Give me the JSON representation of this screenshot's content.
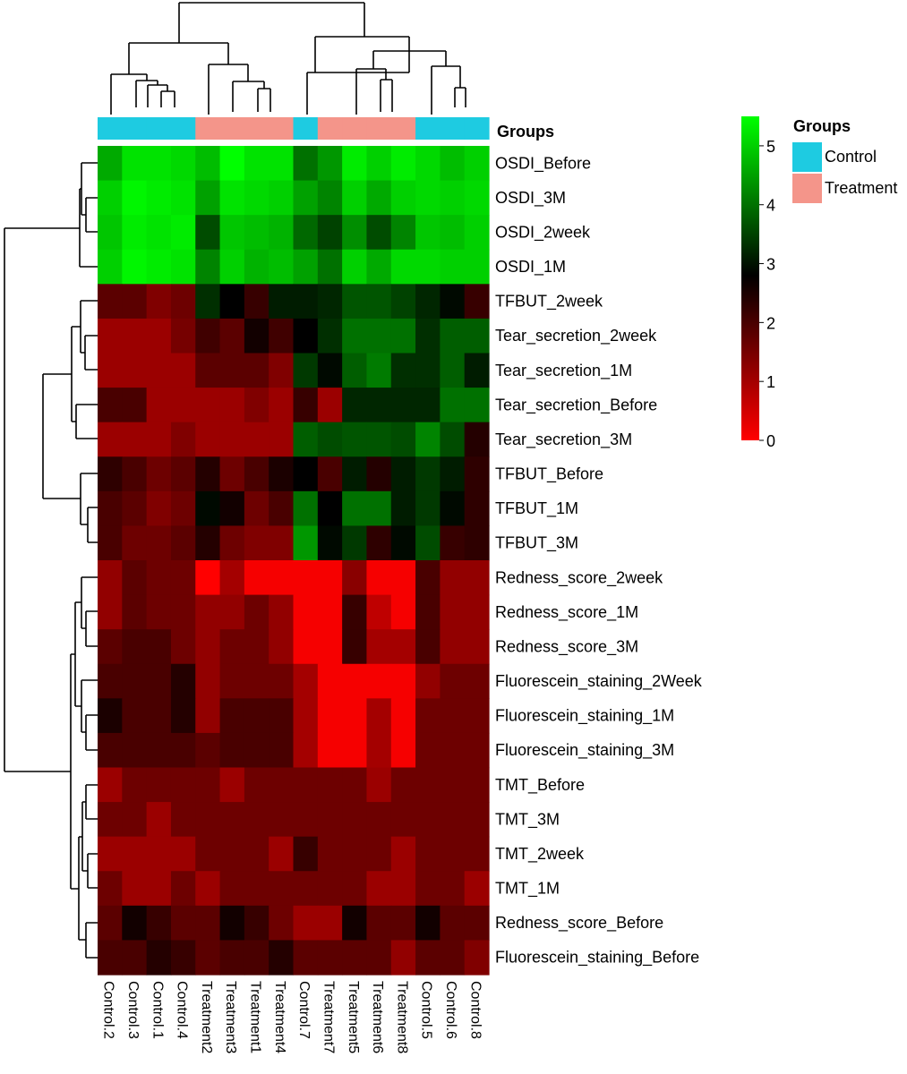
{
  "chart_data": {
    "type": "heatmap",
    "columns": [
      "Control.2",
      "Control.3",
      "Control.1",
      "Control.4",
      "Treatment2",
      "Treatment3",
      "Treatment1",
      "Treatment4",
      "Control.7",
      "Treatment7",
      "Treatment5",
      "Treatment6",
      "Treatment8",
      "Control.5",
      "Control.6",
      "Control.8"
    ],
    "column_groups": [
      "Control",
      "Control",
      "Control",
      "Control",
      "Treatment",
      "Treatment",
      "Treatment",
      "Treatment",
      "Control",
      "Treatment",
      "Treatment",
      "Treatment",
      "Treatment",
      "Control",
      "Control",
      "Control"
    ],
    "rows": [
      "OSDI_Before",
      "OSDI_3M",
      "OSDI_2week",
      "OSDI_1M",
      "TFBUT_2week",
      "Tear_secretion_2week",
      "Tear_secretion_1M",
      "Tear_secretion_Before",
      "Tear_secretion_3M",
      "TFBUT_Before",
      "TFBUT_1M",
      "TFBUT_3M",
      "Redness_score_2week",
      "Redness_score_1M",
      "Redness_score_3M",
      "Fluorescein_staining_2Week",
      "Fluorescein_staining_1M",
      "Fluorescein_staining_3M",
      "TMT_Before",
      "TMT_3M",
      "TMT_2week",
      "TMT_1M",
      "Redness_score_Before",
      "Fluorescein_staining_Before"
    ],
    "values": [
      [
        4.6,
        5.2,
        5.2,
        5.1,
        4.8,
        5.5,
        5.2,
        5.2,
        4.0,
        4.4,
        5.3,
        5.0,
        5.3,
        5.1,
        4.8,
        5.0
      ],
      [
        5.0,
        5.4,
        5.3,
        5.2,
        4.5,
        5.2,
        5.1,
        5.0,
        4.5,
        4.2,
        5.0,
        4.6,
        5.0,
        5.1,
        5.0,
        5.1
      ],
      [
        4.9,
        5.3,
        5.2,
        5.3,
        3.6,
        4.9,
        4.8,
        4.7,
        3.9,
        3.5,
        4.3,
        3.6,
        4.2,
        4.9,
        4.8,
        5.0
      ],
      [
        5.0,
        5.4,
        5.3,
        5.2,
        4.2,
        5.0,
        4.7,
        4.8,
        4.5,
        4.0,
        5.0,
        4.6,
        5.1,
        5.1,
        5.0,
        5.0
      ],
      [
        1.8,
        1.8,
        1.4,
        1.6,
        3.3,
        2.8,
        2.2,
        3.1,
        3.1,
        3.2,
        3.7,
        3.7,
        3.5,
        3.2,
        2.9,
        2.2
      ],
      [
        1.1,
        1.1,
        1.1,
        1.5,
        2.1,
        1.8,
        2.6,
        2.1,
        2.8,
        3.3,
        4.0,
        4.0,
        4.0,
        3.3,
        3.8,
        3.8
      ],
      [
        1.1,
        1.1,
        1.1,
        1.1,
        1.8,
        1.8,
        1.8,
        1.4,
        3.4,
        2.9,
        3.8,
        4.1,
        3.3,
        3.3,
        3.8,
        3.1
      ],
      [
        2.0,
        2.0,
        1.1,
        1.1,
        1.1,
        1.1,
        1.4,
        1.1,
        2.2,
        1.1,
        3.2,
        3.2,
        3.2,
        3.2,
        4.0,
        4.0
      ],
      [
        1.1,
        1.1,
        1.1,
        1.4,
        1.1,
        1.1,
        1.1,
        1.1,
        3.8,
        3.6,
        3.7,
        3.7,
        3.6,
        4.2,
        3.6,
        2.4
      ],
      [
        2.3,
        2.0,
        1.6,
        1.8,
        2.4,
        1.6,
        2.0,
        2.5,
        2.8,
        2.0,
        3.1,
        2.4,
        3.1,
        3.4,
        3.1,
        2.3
      ],
      [
        2.0,
        1.8,
        1.4,
        1.6,
        2.9,
        2.6,
        1.6,
        2.0,
        4.0,
        2.8,
        4.0,
        4.0,
        3.1,
        3.4,
        2.9,
        2.3
      ],
      [
        2.0,
        1.6,
        1.6,
        1.8,
        2.4,
        1.6,
        1.4,
        1.4,
        4.4,
        2.9,
        3.4,
        2.3,
        2.9,
        3.6,
        2.2,
        2.3
      ],
      [
        1.2,
        1.8,
        1.6,
        1.6,
        0.0,
        1.0,
        0.1,
        0.1,
        0.1,
        0.1,
        1.3,
        0.1,
        0.1,
        2.0,
        1.2,
        1.2
      ],
      [
        1.2,
        1.8,
        1.6,
        1.6,
        1.2,
        1.2,
        1.6,
        1.2,
        0.1,
        0.1,
        2.2,
        0.7,
        0.1,
        2.0,
        1.2,
        1.2
      ],
      [
        1.8,
        2.0,
        2.0,
        1.6,
        1.2,
        1.6,
        1.6,
        1.2,
        0.1,
        0.1,
        2.2,
        1.0,
        1.0,
        2.0,
        1.2,
        1.2
      ],
      [
        2.0,
        2.0,
        2.0,
        2.4,
        1.2,
        1.6,
        1.6,
        1.6,
        1.0,
        0.1,
        0.1,
        0.1,
        0.1,
        1.2,
        1.6,
        1.6
      ],
      [
        2.5,
        2.0,
        2.0,
        2.4,
        1.2,
        2.0,
        2.0,
        2.0,
        1.0,
        0.1,
        0.1,
        1.0,
        0.1,
        1.6,
        1.6,
        1.6
      ],
      [
        2.0,
        2.0,
        2.0,
        2.0,
        1.8,
        2.0,
        2.0,
        2.0,
        1.0,
        0.1,
        0.1,
        1.0,
        0.1,
        1.6,
        1.6,
        1.6
      ],
      [
        1.1,
        1.6,
        1.6,
        1.6,
        1.6,
        1.1,
        1.6,
        1.6,
        1.6,
        1.6,
        1.6,
        1.1,
        1.6,
        1.6,
        1.6,
        1.6
      ],
      [
        1.6,
        1.6,
        1.1,
        1.6,
        1.6,
        1.6,
        1.6,
        1.6,
        1.6,
        1.6,
        1.6,
        1.6,
        1.6,
        1.6,
        1.6,
        1.6
      ],
      [
        1.1,
        1.1,
        1.1,
        1.1,
        1.6,
        1.6,
        1.6,
        1.1,
        2.2,
        1.6,
        1.6,
        1.6,
        1.1,
        1.6,
        1.6,
        1.6
      ],
      [
        1.6,
        1.1,
        1.1,
        1.6,
        1.1,
        1.6,
        1.6,
        1.6,
        1.6,
        1.6,
        1.6,
        1.1,
        1.1,
        1.6,
        1.6,
        1.1
      ],
      [
        1.8,
        2.6,
        2.2,
        1.8,
        1.8,
        2.6,
        2.2,
        1.6,
        1.1,
        1.1,
        2.6,
        1.8,
        1.8,
        2.6,
        1.8,
        1.8
      ],
      [
        2.0,
        2.0,
        2.4,
        2.2,
        1.8,
        2.0,
        2.0,
        2.4,
        1.8,
        1.8,
        1.8,
        1.8,
        1.2,
        1.8,
        1.8,
        1.4
      ]
    ],
    "group_bar_label": "Groups",
    "legend_groups": {
      "title": "Groups",
      "items": [
        {
          "label": "Control",
          "color": "#1ecbe1"
        },
        {
          "label": "Treatment",
          "color": "#f4958a"
        }
      ]
    },
    "color_scale": {
      "min": 0,
      "max": 5.5,
      "ticks": [
        0,
        1,
        2,
        3,
        4,
        5
      ],
      "stops": [
        {
          "value": 0,
          "color": "#ff0000"
        },
        {
          "value": 2.8,
          "color": "#000000"
        },
        {
          "value": 5.5,
          "color": "#00ff00"
        }
      ]
    },
    "row_dendrogram": true,
    "column_dendrogram": true
  }
}
